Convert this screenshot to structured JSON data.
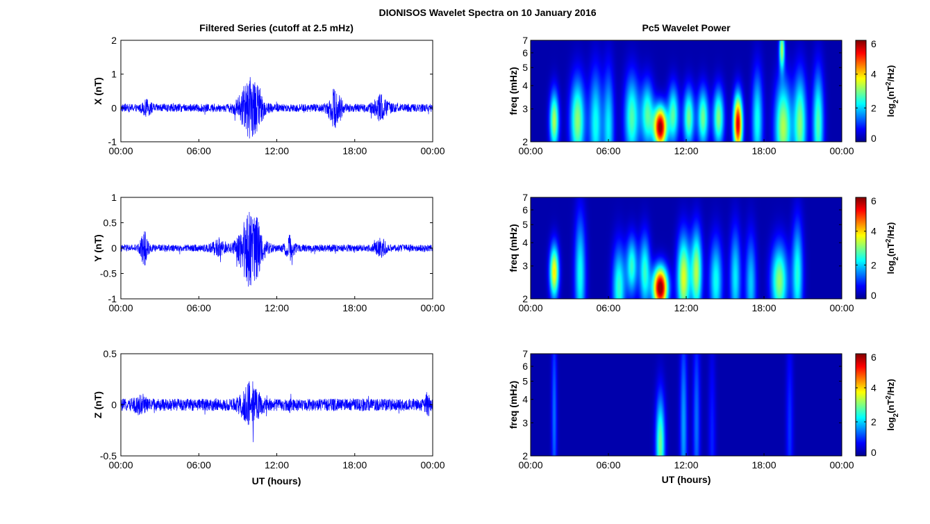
{
  "figure": {
    "title": "DIONISOS Wavelet Spectra on 10 January 2016",
    "left_column_title": "Filtered Series (cutoff at 2.5 mHz)",
    "right_column_title": "Pc5 Wavelet Power",
    "x_axis_label": "UT (hours)"
  },
  "chart_data": [
    {
      "type": "line",
      "panel": "X",
      "ylabel": "X (nT)",
      "ylim": [
        -1,
        2
      ],
      "yticks": [
        "-1",
        "0",
        "1",
        "2"
      ],
      "xlim": [
        0,
        24
      ],
      "xticks": [
        "00:00",
        "06:00",
        "12:00",
        "18:00",
        "00:00"
      ],
      "series": [
        {
          "color": "#0000ff",
          "baseline_amplitude": 0.12,
          "bursts": [
            [
              10.0,
              0.6,
              0.8
            ],
            [
              16.5,
              0.35,
              0.5
            ],
            [
              20.0,
              0.4,
              0.3
            ],
            [
              2.0,
              0.25,
              0.15
            ]
          ]
        }
      ]
    },
    {
      "type": "line",
      "panel": "Y",
      "ylabel": "Y (nT)",
      "ylim": [
        -1,
        1
      ],
      "yticks": [
        "-1",
        "-0.5",
        "0",
        "0.5",
        "1"
      ],
      "xlim": [
        0,
        24
      ],
      "xticks": [
        "00:00",
        "06:00",
        "12:00",
        "18:00",
        "00:00"
      ],
      "series": [
        {
          "color": "#0000ff",
          "baseline_amplitude": 0.07,
          "bursts": [
            [
              10.0,
              0.6,
              0.75
            ],
            [
              1.8,
              0.2,
              0.3
            ],
            [
              13.0,
              0.25,
              0.2
            ],
            [
              20.0,
              0.3,
              0.15
            ],
            [
              7.5,
              0.3,
              0.15
            ]
          ]
        }
      ]
    },
    {
      "type": "line",
      "panel": "Z",
      "ylabel": "Z (nT)",
      "ylim": [
        -0.5,
        0.5
      ],
      "yticks": [
        "-0.5",
        "0",
        "0.5"
      ],
      "xlim": [
        0,
        24
      ],
      "xticks": [
        "00:00",
        "06:00",
        "12:00",
        "18:00",
        "00:00"
      ],
      "series": [
        {
          "color": "#0000ff",
          "baseline_amplitude": 0.06,
          "bursts": [
            [
              10.0,
              0.5,
              0.18
            ],
            [
              1.5,
              0.3,
              0.05
            ],
            [
              23.6,
              0.1,
              0.1
            ]
          ]
        }
      ]
    },
    {
      "type": "heatmap",
      "panel": "X",
      "ylabel": "freq (mHz)",
      "ylim": [
        2,
        7
      ],
      "y_scale": "log",
      "yticks": [
        "2",
        "3",
        "4",
        "5",
        "6",
        "7"
      ],
      "xlim": [
        0,
        24
      ],
      "xticks": [
        "00:00",
        "06:00",
        "12:00",
        "18:00",
        "00:00"
      ],
      "colorbar": {
        "label": "log2(nT^2/Hz)",
        "range": [
          0,
          6
        ],
        "ticks": [
          "0",
          "2",
          "4",
          "6"
        ],
        "colormap": "jet"
      },
      "blobs": [
        [
          10.0,
          2.4,
          6.0,
          0.35,
          7.0
        ],
        [
          16.0,
          2.5,
          5.5,
          0.25,
          5.0
        ],
        [
          1.8,
          2.6,
          3.2,
          0.25,
          5.0
        ],
        [
          3.6,
          2.6,
          3.0,
          0.4,
          3.5
        ],
        [
          7.8,
          2.7,
          2.6,
          0.4,
          3.5
        ],
        [
          9.0,
          2.8,
          2.6,
          0.35,
          4.5
        ],
        [
          11.0,
          2.8,
          2.6,
          0.3,
          5.0
        ],
        [
          12.2,
          2.7,
          2.8,
          0.3,
          5.0
        ],
        [
          13.3,
          2.7,
          2.8,
          0.3,
          5.0
        ],
        [
          14.5,
          2.7,
          2.9,
          0.3,
          5.0
        ],
        [
          19.5,
          2.4,
          3.2,
          0.45,
          3.2
        ],
        [
          20.8,
          2.5,
          2.9,
          0.35,
          3.0
        ],
        [
          22.2,
          2.5,
          2.6,
          0.3,
          2.8
        ],
        [
          19.4,
          6.3,
          3.0,
          0.15,
          7.0
        ],
        [
          5.0,
          2.5,
          2.2,
          0.35,
          2.8
        ],
        [
          6.0,
          2.4,
          2.0,
          0.3,
          2.6
        ],
        [
          17.5,
          2.6,
          2.2,
          0.3,
          3.0
        ]
      ]
    },
    {
      "type": "heatmap",
      "panel": "Y",
      "ylabel": "freq (mHz)",
      "ylim": [
        2,
        7
      ],
      "y_scale": "log",
      "yticks": [
        "2",
        "3",
        "4",
        "5",
        "6",
        "7"
      ],
      "xlim": [
        0,
        24
      ],
      "xticks": [
        "00:00",
        "06:00",
        "12:00",
        "18:00",
        "00:00"
      ],
      "colorbar": {
        "label": "log2(nT^2/Hz)",
        "range": [
          0,
          6
        ],
        "ticks": [
          "0",
          "2",
          "4",
          "6"
        ],
        "colormap": "jet"
      },
      "blobs": [
        [
          10.0,
          2.3,
          6.2,
          0.4,
          7.0
        ],
        [
          1.8,
          2.8,
          3.8,
          0.25,
          5.5
        ],
        [
          11.8,
          2.6,
          3.5,
          0.35,
          3.5
        ],
        [
          12.8,
          2.8,
          3.2,
          0.3,
          3.5
        ],
        [
          3.8,
          2.7,
          2.2,
          0.3,
          2.5
        ],
        [
          6.8,
          2.3,
          2.4,
          0.35,
          3.5
        ],
        [
          7.8,
          3.0,
          2.4,
          0.3,
          5.0
        ],
        [
          8.8,
          2.8,
          2.4,
          0.3,
          4.0
        ],
        [
          14.3,
          2.5,
          2.2,
          0.35,
          3.5
        ],
        [
          15.8,
          2.6,
          2.0,
          0.3,
          3.0
        ],
        [
          19.2,
          2.5,
          3.0,
          0.45,
          4.0
        ],
        [
          20.6,
          2.7,
          2.3,
          0.3,
          2.8
        ],
        [
          17.0,
          2.4,
          1.8,
          0.3,
          3.0
        ]
      ]
    },
    {
      "type": "heatmap",
      "panel": "Z",
      "ylabel": "freq (mHz)",
      "ylim": [
        2,
        7
      ],
      "y_scale": "log",
      "yticks": [
        "2",
        "3",
        "4",
        "5",
        "6",
        "7"
      ],
      "xlim": [
        0,
        24
      ],
      "xticks": [
        "00:00",
        "06:00",
        "12:00",
        "18:00",
        "00:00"
      ],
      "colorbar": {
        "label": "log2(nT^2/Hz)",
        "range": [
          0,
          6
        ],
        "ticks": [
          "0",
          "2",
          "4",
          "6"
        ],
        "colormap": "jet"
      },
      "blobs": [
        [
          10.0,
          2.3,
          2.8,
          0.25,
          3.0
        ],
        [
          1.8,
          3.2,
          1.2,
          0.15,
          1.5
        ],
        [
          11.8,
          2.8,
          1.5,
          0.2,
          1.5
        ],
        [
          12.8,
          2.9,
          1.2,
          0.2,
          1.5
        ],
        [
          20.0,
          2.7,
          0.8,
          0.2,
          1.5
        ],
        [
          14.0,
          2.4,
          0.7,
          0.2,
          1.5
        ]
      ]
    }
  ]
}
